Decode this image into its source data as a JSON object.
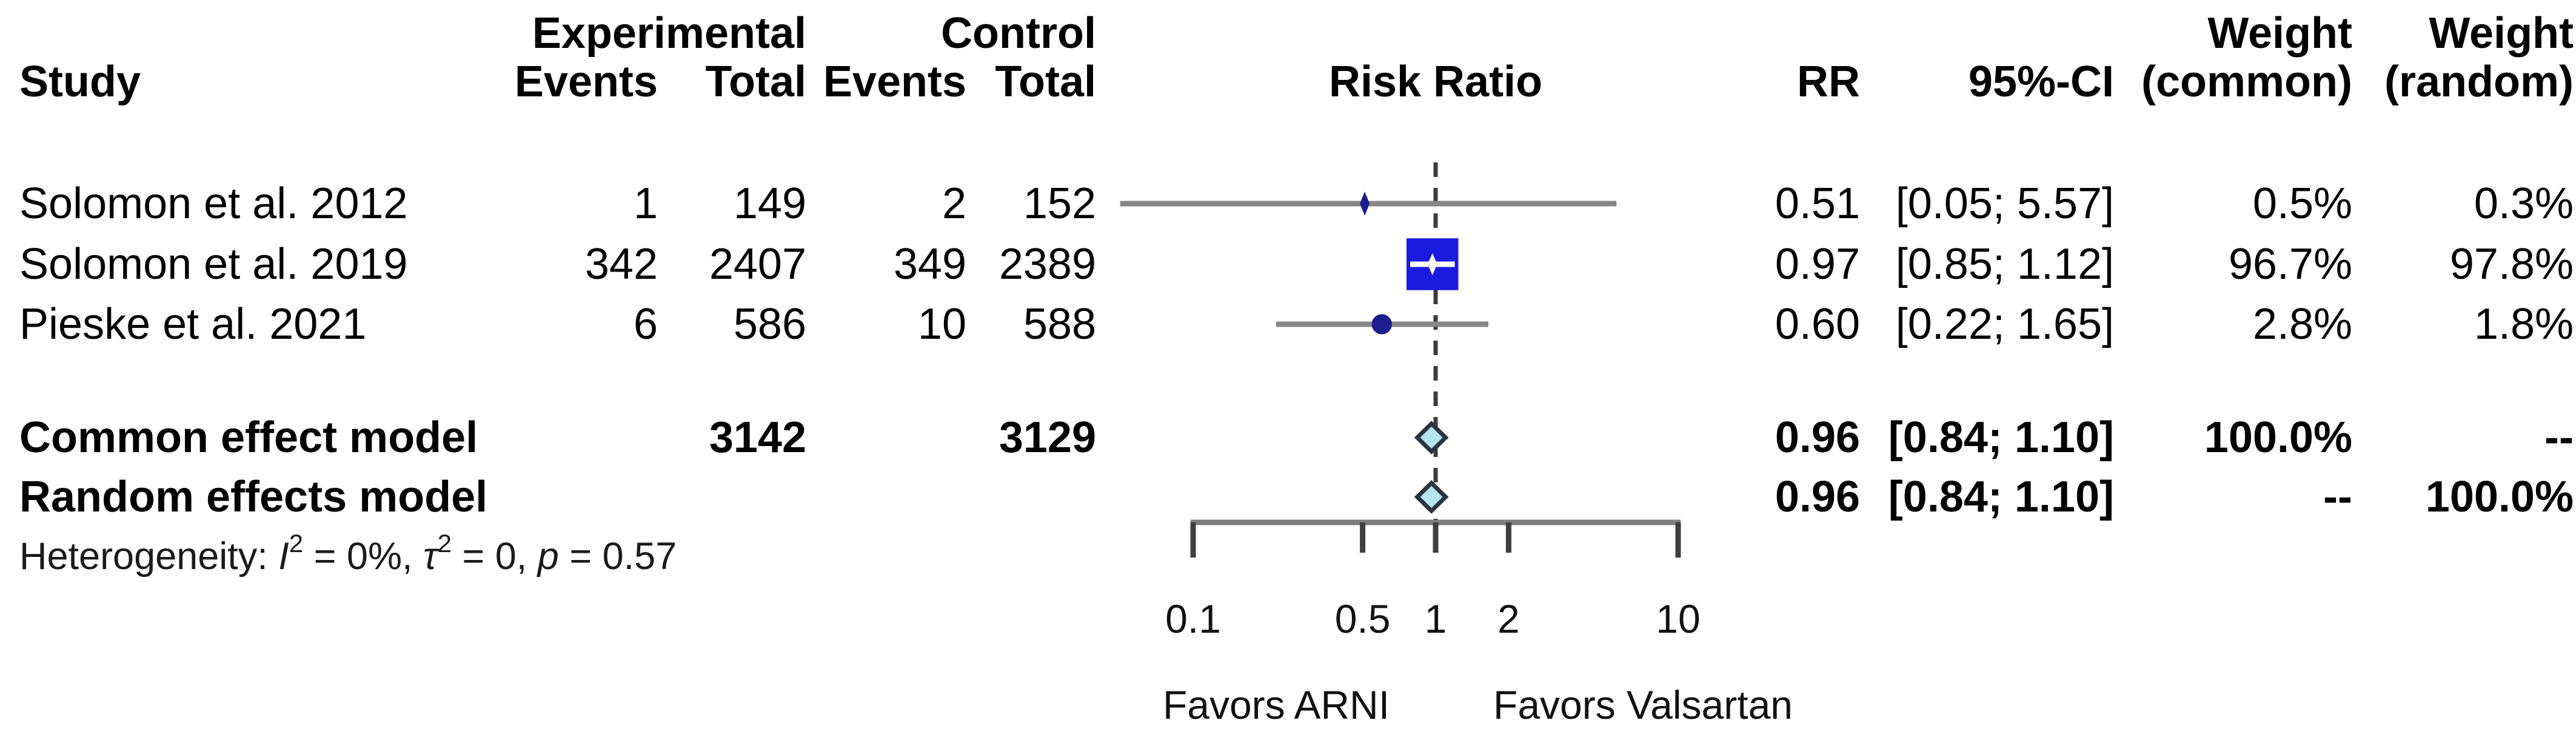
{
  "table": {
    "header_top": {
      "experimental": "Experimental",
      "control": "Control",
      "weight_common": "Weight",
      "weight_random": "Weight"
    },
    "header": {
      "study": "Study",
      "exp_events": "Events",
      "exp_total": "Total",
      "ctrl_events": "Events",
      "ctrl_total": "Total",
      "risk_ratio": "Risk Ratio",
      "rr": "RR",
      "ci": "95%-CI",
      "w_common": "(common)",
      "w_random": "(random)"
    },
    "rows": [
      {
        "study": "Solomon et al. 2012",
        "exp_events": "1",
        "exp_total": "149",
        "ctrl_events": "2",
        "ctrl_total": "152",
        "rr": "0.51",
        "ci": "[0.05; 5.57]",
        "w_common": "0.5%",
        "w_random": "0.3%"
      },
      {
        "study": "Solomon et al. 2019",
        "exp_events": "342",
        "exp_total": "2407",
        "ctrl_events": "349",
        "ctrl_total": "2389",
        "rr": "0.97",
        "ci": "[0.85; 1.12]",
        "w_common": "96.7%",
        "w_random": "97.8%"
      },
      {
        "study": "Pieske et al. 2021",
        "exp_events": "6",
        "exp_total": "586",
        "ctrl_events": "10",
        "ctrl_total": "588",
        "rr": "0.60",
        "ci": "[0.22; 1.65]",
        "w_common": "2.8%",
        "w_random": "1.8%"
      }
    ],
    "summary_rows": [
      {
        "label": "Common effect model",
        "exp_total": "3142",
        "ctrl_total": "3129",
        "rr": "0.96",
        "ci": "[0.84; 1.10]",
        "w_common": "100.0%",
        "w_random": "--"
      },
      {
        "label": "Random effects model",
        "rr": "0.96",
        "ci": "[0.84; 1.10]",
        "w_common": "--",
        "w_random": "100.0%"
      }
    ],
    "heterogeneity": {
      "prefix": "Heterogeneity: ",
      "i_sym": "I",
      "i_sup": "2",
      "seg1": " = 0%, ",
      "tau_sym": "τ",
      "tau_sup": "2",
      "seg2": " = 0, ",
      "p_sym": "p",
      "seg3": " = 0.57"
    }
  },
  "chart_data": {
    "type": "forest",
    "x_scale": "log",
    "title": "Risk Ratio",
    "axis_ticks": [
      "0.1",
      "0.5",
      "1",
      "2",
      "10"
    ],
    "axis_range": [
      0.1,
      10
    ],
    "reference_line": 1,
    "favors_left": "Favors ARNI",
    "favors_right": "Favors Valsartan",
    "studies": [
      {
        "label": "Solomon et al. 2012",
        "rr": 0.51,
        "ci_low": 0.05,
        "ci_high": 5.57,
        "weight_common": 0.5,
        "weight_random": 0.3
      },
      {
        "label": "Solomon et al. 2019",
        "rr": 0.97,
        "ci_low": 0.85,
        "ci_high": 1.12,
        "weight_common": 96.7,
        "weight_random": 97.8
      },
      {
        "label": "Pieske et al. 2021",
        "rr": 0.6,
        "ci_low": 0.22,
        "ci_high": 1.65,
        "weight_common": 2.8,
        "weight_random": 1.8
      }
    ],
    "summaries": [
      {
        "label": "Common effect model",
        "rr": 0.96,
        "ci_low": 0.84,
        "ci_high": 1.1
      },
      {
        "label": "Random effects model",
        "rr": 0.96,
        "ci_low": 0.84,
        "ci_high": 1.1
      }
    ],
    "heterogeneity_text": "Heterogeneity: I2 = 0%, tau2 = 0, p = 0.57"
  },
  "colors": {
    "text": "#000000",
    "ci_line": "#878787",
    "axis_line": "#7d7d7d",
    "tick": "#3f3f3f",
    "ref_dash": "#3c3c3c",
    "square_blue": "#1b1be0",
    "point_navy": "#1d1d8f",
    "square_cross": "#ffffff",
    "diamond_fill": "#b7e4f2",
    "diamond_stroke": "#2b3540"
  }
}
